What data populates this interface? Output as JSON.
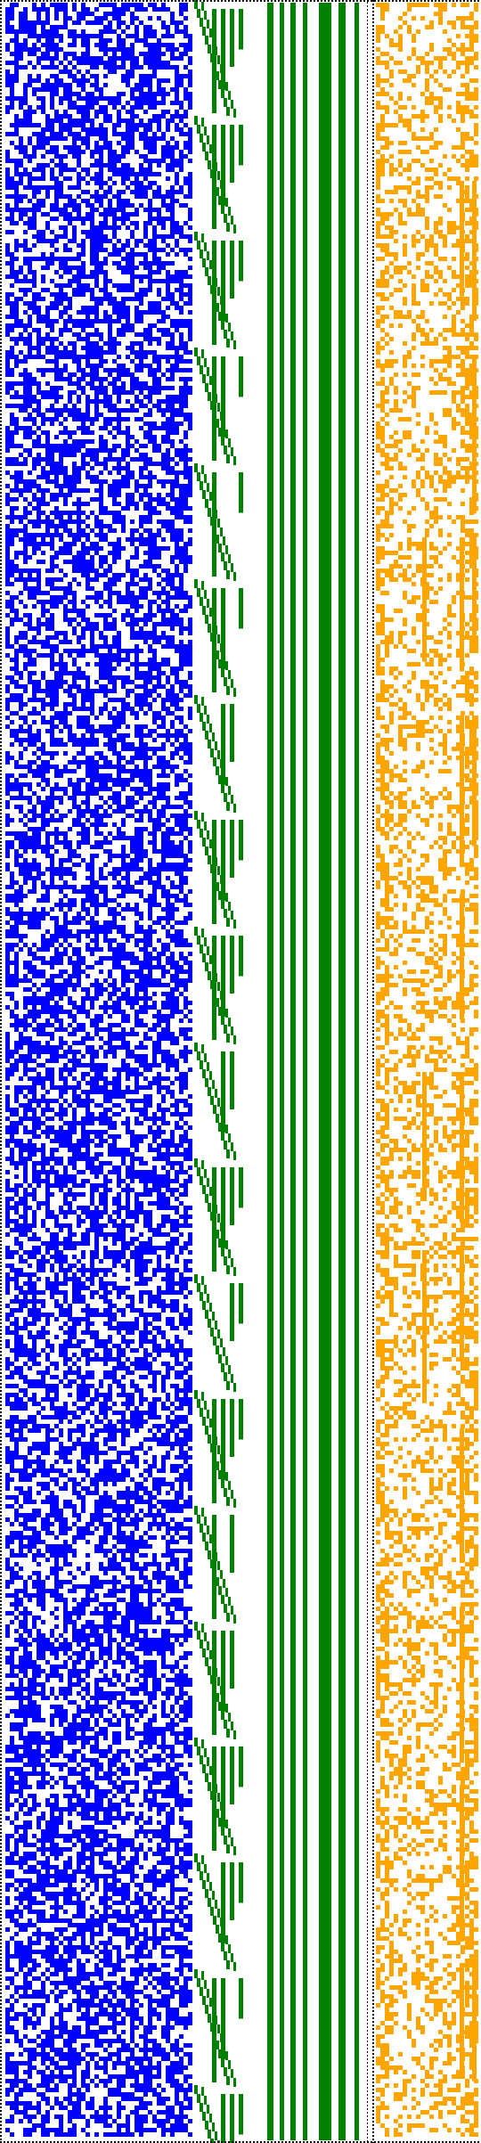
{
  "colors": {
    "background": "#ffffff",
    "border": "#000000",
    "left_band": "#0000ff",
    "middle_band": "#008000",
    "right_band": "#ffa500"
  },
  "panels": [
    {
      "name": "left-random-band",
      "color_key": "left_band",
      "pattern": "dense-random-cells"
    },
    {
      "name": "middle-staircase-band",
      "color_key": "middle_band",
      "pattern": "staircase-and-vertical-bars"
    },
    {
      "name": "right-random-band",
      "color_key": "right_band",
      "pattern": "sparse-random-cells"
    }
  ]
}
